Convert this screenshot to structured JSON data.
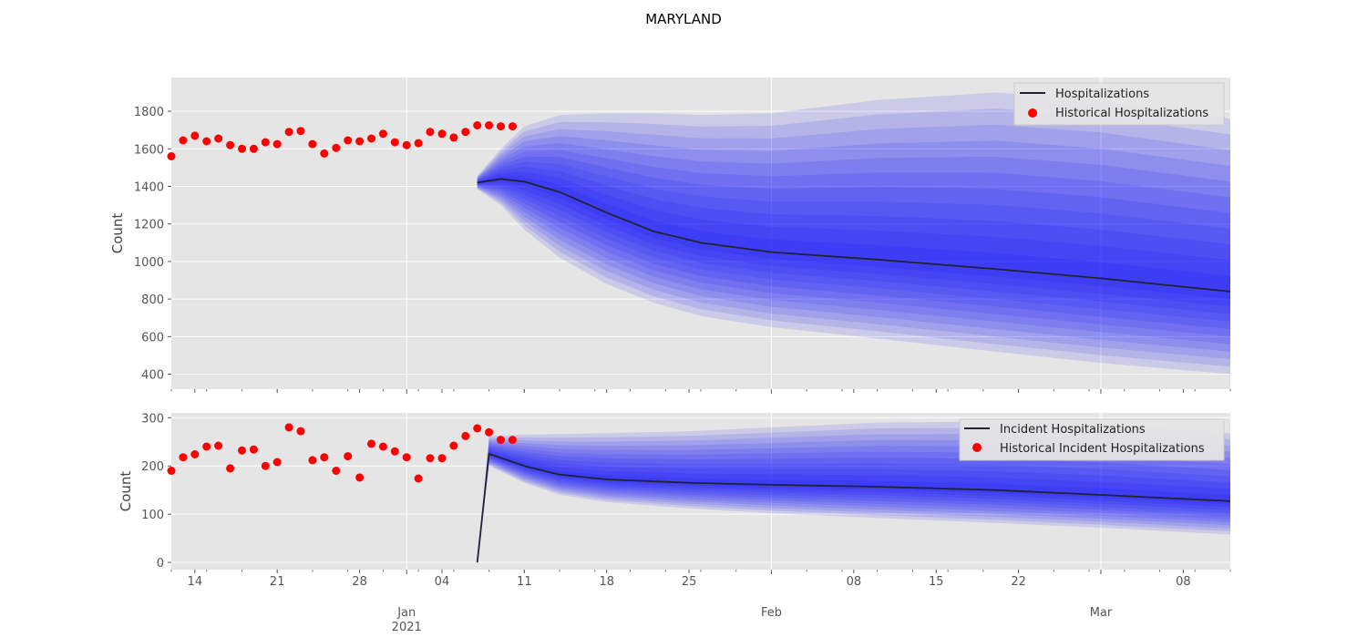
{
  "figure": {
    "title": "MARYLAND"
  },
  "colors": {
    "panel_bg": "#e5e5e5",
    "grid": "#ffffff",
    "band": "#0000ff",
    "median_line": "#222233",
    "historical_points": "#ff0000",
    "tick_text": "#555555"
  },
  "x_axis": {
    "start": "2020-12-12",
    "end": "2021-03-12",
    "major_ticks": [
      {
        "date": "2021-01-01",
        "label": "Jan",
        "sublabel": "2021"
      },
      {
        "date": "2021-02-01",
        "label": "Feb",
        "sublabel": ""
      },
      {
        "date": "2021-03-01",
        "label": "Mar",
        "sublabel": ""
      }
    ],
    "minor_ticks": [
      {
        "date": "2020-12-14",
        "label": "14"
      },
      {
        "date": "2020-12-21",
        "label": "21"
      },
      {
        "date": "2020-12-28",
        "label": "28"
      },
      {
        "date": "2021-01-04",
        "label": "04"
      },
      {
        "date": "2021-01-11",
        "label": "11"
      },
      {
        "date": "2021-01-18",
        "label": "18"
      },
      {
        "date": "2021-01-25",
        "label": "25"
      },
      {
        "date": "2021-02-08",
        "label": "08"
      },
      {
        "date": "2021-02-15",
        "label": "15"
      },
      {
        "date": "2021-02-22",
        "label": "22"
      },
      {
        "date": "2021-03-08",
        "label": "08"
      }
    ]
  },
  "chart_data": [
    {
      "type": "line",
      "ylabel": "Count",
      "ylim": [
        320,
        1980
      ],
      "yticks": [
        400,
        600,
        800,
        1000,
        1200,
        1400,
        1600,
        1800
      ],
      "grid": true,
      "legend_position": "top-right",
      "legend": [
        "Hospitalizations",
        "Historical Hospitalizations"
      ],
      "historical": {
        "name": "Historical Hospitalizations",
        "start": "2020-12-12",
        "values": [
          1560,
          1645,
          1670,
          1640,
          1655,
          1620,
          1600,
          1600,
          1635,
          1625,
          1690,
          1695,
          1625,
          1575,
          1605,
          1645,
          1640,
          1655,
          1680,
          1635,
          1620,
          1630,
          1690,
          1680,
          1660,
          1690,
          1725,
          1725,
          1720,
          1720
        ]
      },
      "forecast": {
        "name": "Hospitalizations",
        "dates": [
          "2021-01-07",
          "2021-01-09",
          "2021-01-11",
          "2021-01-14",
          "2021-01-18",
          "2021-01-22",
          "2021-01-26",
          "2021-02-01",
          "2021-02-10",
          "2021-02-20",
          "2021-03-01",
          "2021-03-12"
        ],
        "median": [
          1420,
          1440,
          1425,
          1370,
          1260,
          1160,
          1100,
          1050,
          1010,
          960,
          910,
          840
        ],
        "upper_outer": [
          1455,
          1600,
          1720,
          1780,
          1790,
          1790,
          1780,
          1790,
          1860,
          1900,
          1860,
          1760
        ],
        "lower_outer": [
          1385,
          1300,
          1170,
          1020,
          880,
          780,
          710,
          650,
          590,
          520,
          460,
          400
        ]
      }
    },
    {
      "type": "line",
      "ylabel": "Count",
      "ylim": [
        -15,
        310
      ],
      "yticks": [
        0,
        100,
        200,
        300
      ],
      "grid": true,
      "legend_position": "top-right",
      "legend": [
        "Incident Hospitalizations",
        "Historical Incident Hospitalizations"
      ],
      "historical": {
        "name": "Historical Incident Hospitalizations",
        "start": "2020-12-12",
        "values": [
          190,
          218,
          224,
          240,
          242,
          195,
          232,
          234,
          200,
          208,
          280,
          272,
          212,
          218,
          190,
          220,
          176,
          246,
          240,
          230,
          218,
          174,
          216,
          216,
          242,
          262,
          278,
          270,
          254,
          254
        ]
      },
      "forecast": {
        "name": "Incident Hospitalizations",
        "dates": [
          "2021-01-07",
          "2021-01-08",
          "2021-01-11",
          "2021-01-14",
          "2021-01-18",
          "2021-01-25",
          "2021-02-01",
          "2021-02-10",
          "2021-02-20",
          "2021-03-01",
          "2021-03-12"
        ],
        "median": [
          0,
          225,
          200,
          182,
          172,
          165,
          161,
          157,
          150,
          140,
          127
        ],
        "upper_outer": [
          0,
          262,
          265,
          266,
          268,
          272,
          280,
          290,
          292,
          288,
          268
        ],
        "lower_outer": [
          0,
          200,
          165,
          140,
          125,
          112,
          102,
          92,
          82,
          72,
          58
        ]
      }
    }
  ]
}
